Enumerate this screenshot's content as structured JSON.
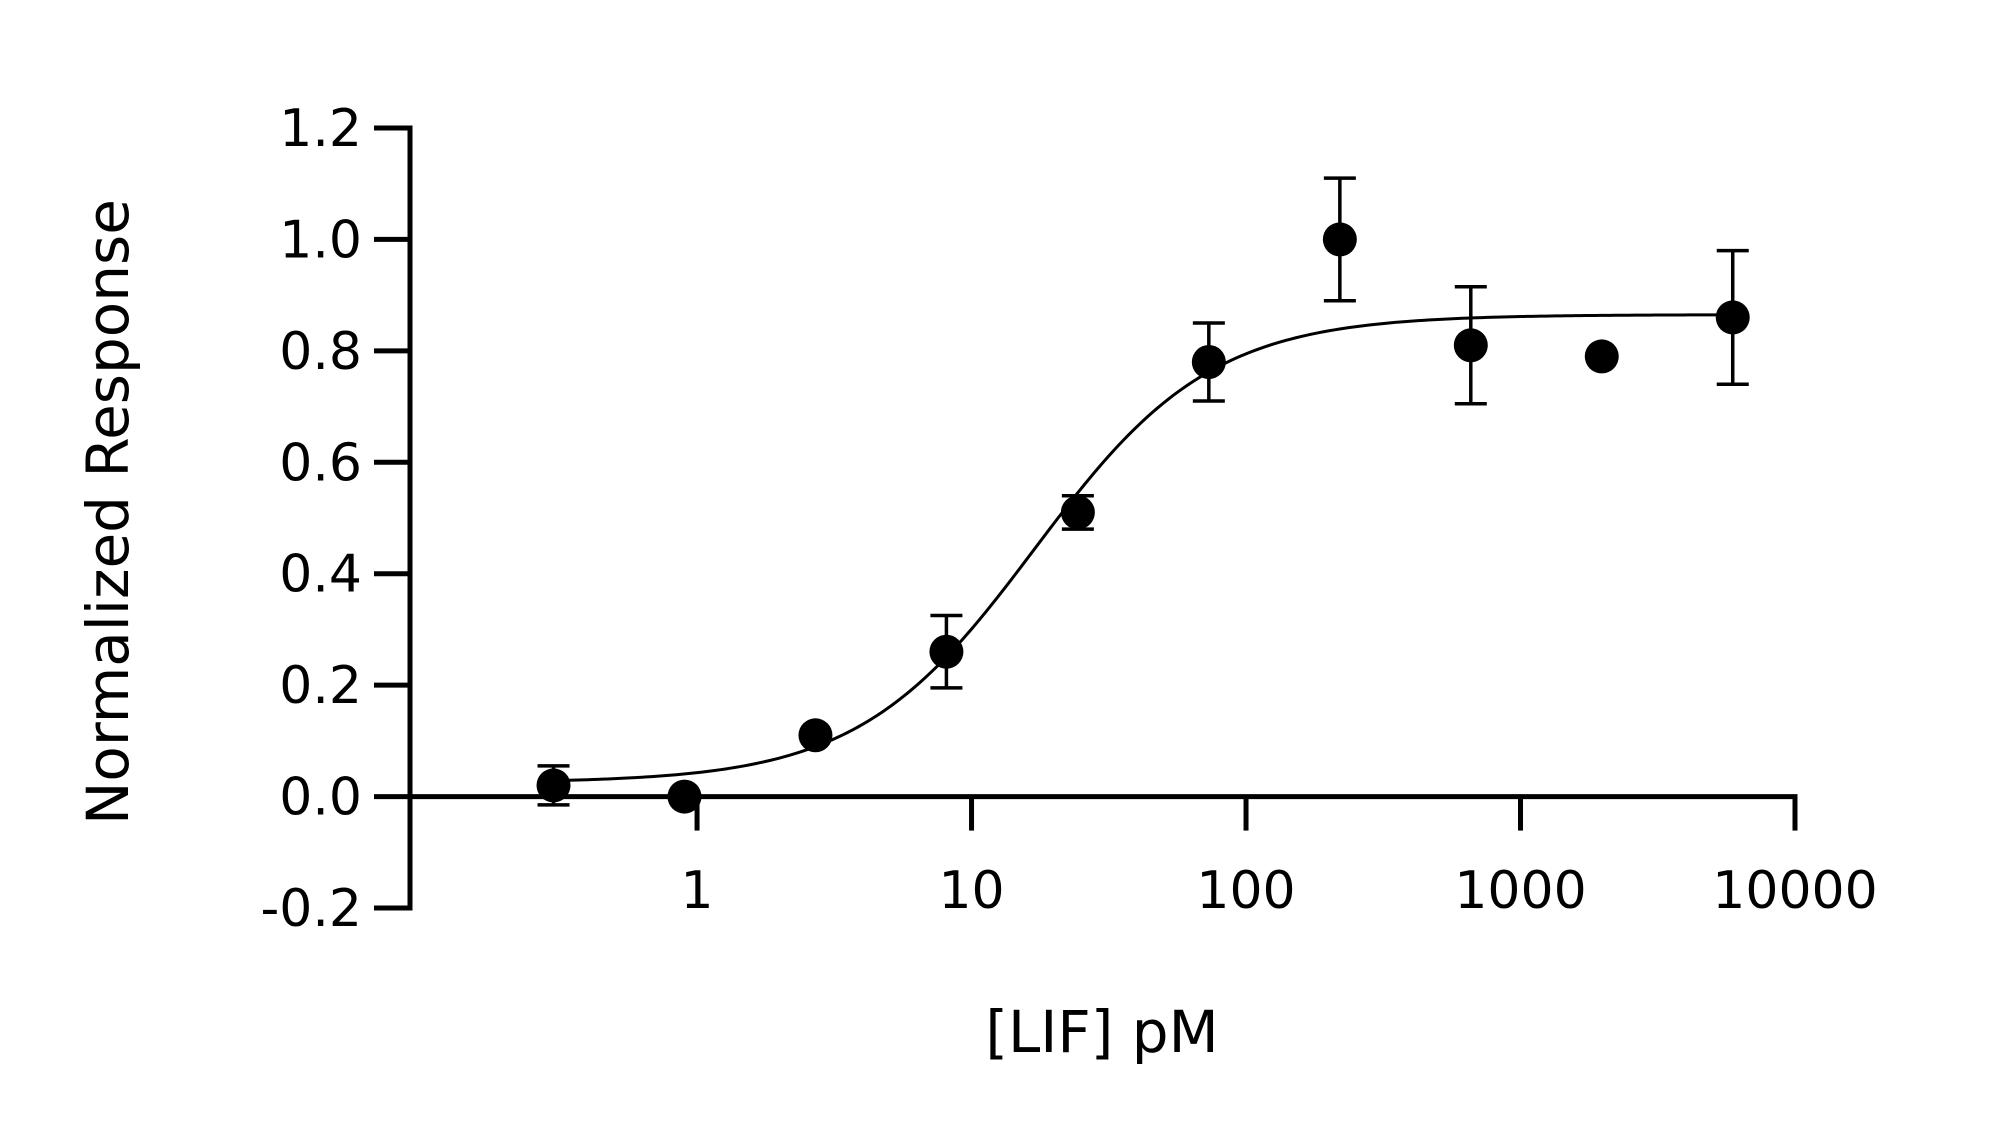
{
  "chart_data": {
    "type": "scatter",
    "xlabel": "[LIF] pM",
    "ylabel": "Normalized Response",
    "x_scale": "log",
    "xlim": [
      0.09,
      10000
    ],
    "ylim": [
      -0.2,
      1.2
    ],
    "x_ticks": [
      1,
      10,
      100,
      1000,
      10000
    ],
    "x_tick_labels": [
      "1",
      "10",
      "100",
      "1000",
      "10000"
    ],
    "y_ticks": [
      -0.2,
      0.0,
      0.2,
      0.4,
      0.6,
      0.8,
      1.0,
      1.2
    ],
    "y_tick_labels": [
      "-0.2",
      "0.0",
      "0.2",
      "0.4",
      "0.6",
      "0.8",
      "1.0",
      "1.2"
    ],
    "grid": false,
    "series": [
      {
        "x": [
          0.3,
          0.9,
          2.7,
          8.1,
          24.4,
          73.2,
          219.7,
          659,
          1977,
          5931
        ],
        "y": [
          0.02,
          0.0,
          0.11,
          0.26,
          0.51,
          0.78,
          1.0,
          0.81,
          0.79,
          0.86
        ],
        "err": [
          0.035,
          0.0,
          0.0,
          0.065,
          0.03,
          0.07,
          0.11,
          0.105,
          0.0,
          0.12
        ]
      }
    ],
    "fit": {
      "model": "four-parameter logistic",
      "bottom": 0.025,
      "top": 0.865,
      "ec50": 17,
      "hill": 1.35
    }
  }
}
